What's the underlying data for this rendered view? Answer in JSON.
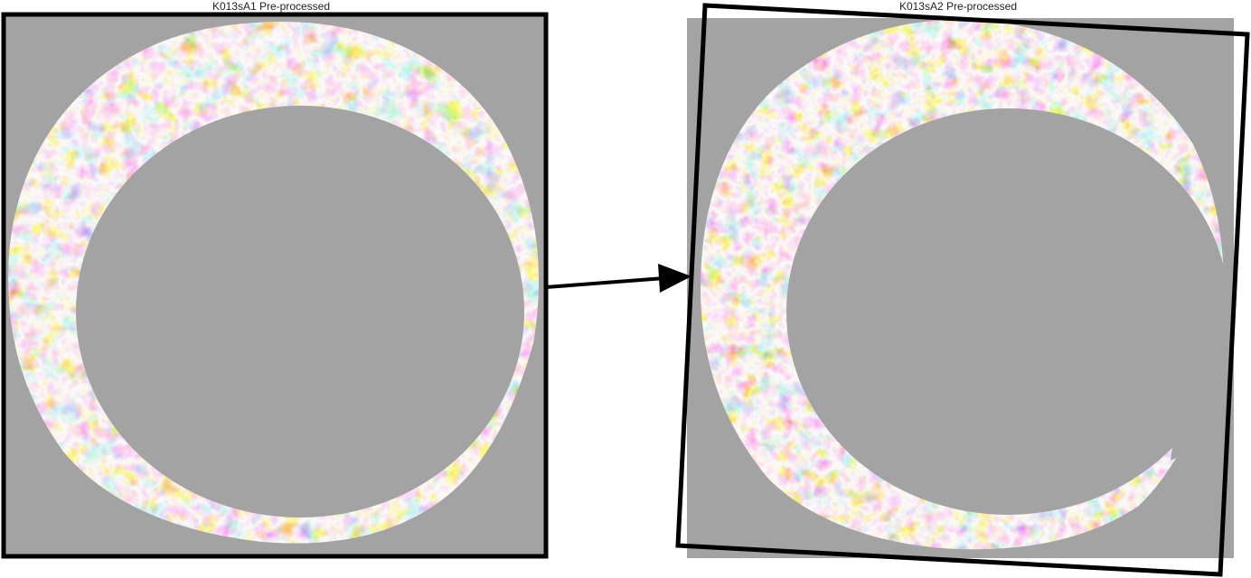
{
  "panels": [
    {
      "title": "K013sA1 Pre-processed",
      "kind": "reference"
    },
    {
      "title": "K013sA2 Pre-processed",
      "kind": "aligned-rotated"
    }
  ],
  "colors": {
    "background_mask": "#a3a3a3",
    "frame": "#000000",
    "surface_high": "#b35806",
    "surface_mid_high": "#f1a340",
    "surface_neutral": "#f7f7f7",
    "surface_mid_low": "#998ec3",
    "surface_low": "#542788"
  },
  "connector": {
    "icon": "arrow-right-icon"
  }
}
